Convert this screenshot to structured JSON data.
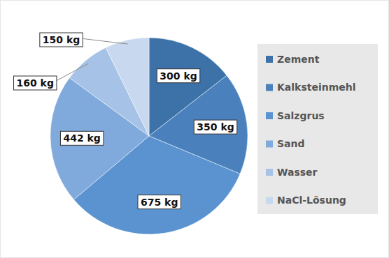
{
  "chart_data": {
    "type": "pie",
    "categories": [
      "Zement",
      "Kalksteinmehl",
      "Salzgrus",
      "Sand",
      "Wasser",
      "NaCl-Lösung"
    ],
    "values": [
      300,
      350,
      675,
      442,
      160,
      150
    ],
    "value_labels": [
      "300 kg",
      "350 kg",
      "675 kg",
      "442 kg",
      "160 kg",
      "150 kg"
    ],
    "colors": [
      "#3d72a8",
      "#4a81bd",
      "#5a93cf",
      "#80aadc",
      "#a6c3e7",
      "#c7d8ef"
    ],
    "data_labels": true,
    "legend": "right"
  }
}
